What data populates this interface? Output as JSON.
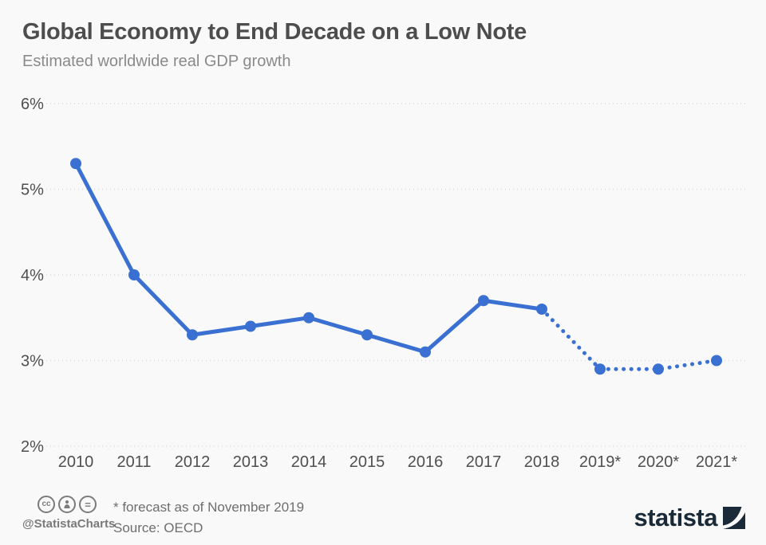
{
  "header": {
    "title": "Global Economy to End Decade on a Low Note",
    "subtitle": "Estimated worldwide real GDP growth"
  },
  "chart_data": {
    "type": "line",
    "title": "Global Economy to End Decade on a Low Note",
    "subtitle": "Estimated worldwide real GDP growth",
    "categories": [
      "2010",
      "2011",
      "2012",
      "2013",
      "2014",
      "2015",
      "2016",
      "2017",
      "2018",
      "2019*",
      "2020*",
      "2021*"
    ],
    "values": [
      5.3,
      4.0,
      3.3,
      3.4,
      3.5,
      3.3,
      3.1,
      3.7,
      3.6,
      2.9,
      2.9,
      3.0
    ],
    "unit": "%",
    "ylim": [
      2,
      6
    ],
    "y_tick_step": 1,
    "xlabel": "",
    "ylabel": "",
    "grid": true,
    "legend": "none",
    "forecast_start_index": 8,
    "forecast_note": "* forecast as of November 2019",
    "line_color": "#3a70d1"
  },
  "footer": {
    "icons": [
      {
        "name": "cc-icon",
        "glyph": "cc"
      },
      {
        "name": "attribution-icon",
        "glyph": ""
      },
      {
        "name": "equals-icon",
        "glyph": "="
      }
    ],
    "handle": "@StatistaCharts",
    "footnote": "* forecast as of November 2019",
    "source": "Source: OECD",
    "logo_text": "statista"
  },
  "colors": {
    "background": "#f9f9f9",
    "title": "#4d4d4d",
    "subtitle": "#8a8a8a",
    "axis_text": "#4f4f4f",
    "gridline": "#d8d8d8",
    "line": "#3a70d1",
    "footer_text": "#6e6e6e",
    "logo_navy": "#1a2a38"
  }
}
